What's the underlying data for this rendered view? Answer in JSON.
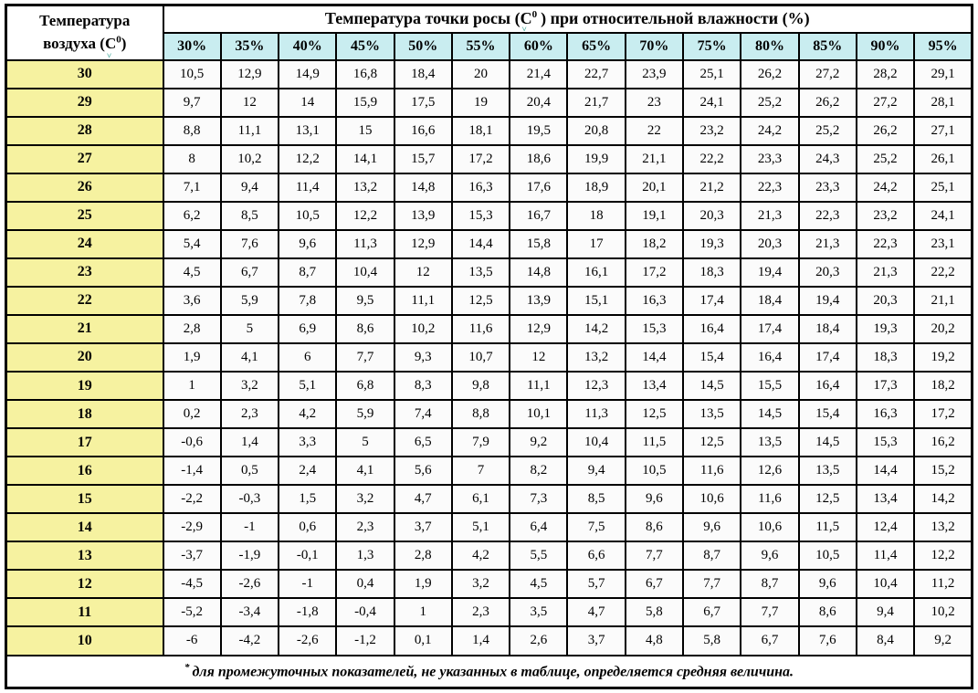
{
  "colors": {
    "header_cyan": "#c9edf0",
    "row_yellow": "#f6f2a0",
    "cell_bg": "#fbfbfb",
    "border_black": "#000000",
    "squiggle_teal": "#2f9e8f"
  },
  "icons": {
    "squiggle": "˅"
  },
  "header": {
    "corner_line1": "Температура",
    "corner_line2_pre": "воздуха (",
    "corner_c": "С",
    "corner_sup": "0",
    "corner_line2_post": ")",
    "title_pre": "Температура точки росы (",
    "title_c": "С",
    "title_sup": "0",
    "title_post": ") при относительной влажности (%)"
  },
  "footnote": {
    "marker": "*",
    "text": "для промежуточных показателей, не указанных в таблице, определяется средняя величина."
  },
  "chart_data": {
    "type": "table",
    "title": "Температура точки росы (С0) при относительной влажности (%)",
    "row_header_label": "Температура воздуха (С0)",
    "columns": [
      "30%",
      "35%",
      "40%",
      "45%",
      "50%",
      "55%",
      "60%",
      "65%",
      "70%",
      "75%",
      "80%",
      "85%",
      "90%",
      "95%"
    ],
    "rows": [
      {
        "temp": "30",
        "values": [
          "10,5",
          "12,9",
          "14,9",
          "16,8",
          "18,4",
          "20",
          "21,4",
          "22,7",
          "23,9",
          "25,1",
          "26,2",
          "27,2",
          "28,2",
          "29,1"
        ]
      },
      {
        "temp": "29",
        "values": [
          "9,7",
          "12",
          "14",
          "15,9",
          "17,5",
          "19",
          "20,4",
          "21,7",
          "23",
          "24,1",
          "25,2",
          "26,2",
          "27,2",
          "28,1"
        ]
      },
      {
        "temp": "28",
        "values": [
          "8,8",
          "11,1",
          "13,1",
          "15",
          "16,6",
          "18,1",
          "19,5",
          "20,8",
          "22",
          "23,2",
          "24,2",
          "25,2",
          "26,2",
          "27,1"
        ]
      },
      {
        "temp": "27",
        "values": [
          "8",
          "10,2",
          "12,2",
          "14,1",
          "15,7",
          "17,2",
          "18,6",
          "19,9",
          "21,1",
          "22,2",
          "23,3",
          "24,3",
          "25,2",
          "26,1"
        ]
      },
      {
        "temp": "26",
        "values": [
          "7,1",
          "9,4",
          "11,4",
          "13,2",
          "14,8",
          "16,3",
          "17,6",
          "18,9",
          "20,1",
          "21,2",
          "22,3",
          "23,3",
          "24,2",
          "25,1"
        ]
      },
      {
        "temp": "25",
        "values": [
          "6,2",
          "8,5",
          "10,5",
          "12,2",
          "13,9",
          "15,3",
          "16,7",
          "18",
          "19,1",
          "20,3",
          "21,3",
          "22,3",
          "23,2",
          "24,1"
        ]
      },
      {
        "temp": "24",
        "values": [
          "5,4",
          "7,6",
          "9,6",
          "11,3",
          "12,9",
          "14,4",
          "15,8",
          "17",
          "18,2",
          "19,3",
          "20,3",
          "21,3",
          "22,3",
          "23,1"
        ]
      },
      {
        "temp": "23",
        "values": [
          "4,5",
          "6,7",
          "8,7",
          "10,4",
          "12",
          "13,5",
          "14,8",
          "16,1",
          "17,2",
          "18,3",
          "19,4",
          "20,3",
          "21,3",
          "22,2"
        ]
      },
      {
        "temp": "22",
        "values": [
          "3,6",
          "5,9",
          "7,8",
          "9,5",
          "11,1",
          "12,5",
          "13,9",
          "15,1",
          "16,3",
          "17,4",
          "18,4",
          "19,4",
          "20,3",
          "21,1"
        ]
      },
      {
        "temp": "21",
        "values": [
          "2,8",
          "5",
          "6,9",
          "8,6",
          "10,2",
          "11,6",
          "12,9",
          "14,2",
          "15,3",
          "16,4",
          "17,4",
          "18,4",
          "19,3",
          "20,2"
        ]
      },
      {
        "temp": "20",
        "values": [
          "1,9",
          "4,1",
          "6",
          "7,7",
          "9,3",
          "10,7",
          "12",
          "13,2",
          "14,4",
          "15,4",
          "16,4",
          "17,4",
          "18,3",
          "19,2"
        ]
      },
      {
        "temp": "19",
        "values": [
          "1",
          "3,2",
          "5,1",
          "6,8",
          "8,3",
          "9,8",
          "11,1",
          "12,3",
          "13,4",
          "14,5",
          "15,5",
          "16,4",
          "17,3",
          "18,2"
        ]
      },
      {
        "temp": "18",
        "values": [
          "0,2",
          "2,3",
          "4,2",
          "5,9",
          "7,4",
          "8,8",
          "10,1",
          "11,3",
          "12,5",
          "13,5",
          "14,5",
          "15,4",
          "16,3",
          "17,2"
        ]
      },
      {
        "temp": "17",
        "values": [
          "-0,6",
          "1,4",
          "3,3",
          "5",
          "6,5",
          "7,9",
          "9,2",
          "10,4",
          "11,5",
          "12,5",
          "13,5",
          "14,5",
          "15,3",
          "16,2"
        ]
      },
      {
        "temp": "16",
        "values": [
          "-1,4",
          "0,5",
          "2,4",
          "4,1",
          "5,6",
          "7",
          "8,2",
          "9,4",
          "10,5",
          "11,6",
          "12,6",
          "13,5",
          "14,4",
          "15,2"
        ]
      },
      {
        "temp": "15",
        "values": [
          "-2,2",
          "-0,3",
          "1,5",
          "3,2",
          "4,7",
          "6,1",
          "7,3",
          "8,5",
          "9,6",
          "10,6",
          "11,6",
          "12,5",
          "13,4",
          "14,2"
        ]
      },
      {
        "temp": "14",
        "values": [
          "-2,9",
          "-1",
          "0,6",
          "2,3",
          "3,7",
          "5,1",
          "6,4",
          "7,5",
          "8,6",
          "9,6",
          "10,6",
          "11,5",
          "12,4",
          "13,2"
        ]
      },
      {
        "temp": "13",
        "values": [
          "-3,7",
          "-1,9",
          "-0,1",
          "1,3",
          "2,8",
          "4,2",
          "5,5",
          "6,6",
          "7,7",
          "8,7",
          "9,6",
          "10,5",
          "11,4",
          "12,2"
        ]
      },
      {
        "temp": "12",
        "values": [
          "-4,5",
          "-2,6",
          "-1",
          "0,4",
          "1,9",
          "3,2",
          "4,5",
          "5,7",
          "6,7",
          "7,7",
          "8,7",
          "9,6",
          "10,4",
          "11,2"
        ]
      },
      {
        "temp": "11",
        "values": [
          "-5,2",
          "-3,4",
          "-1,8",
          "-0,4",
          "1",
          "2,3",
          "3,5",
          "4,7",
          "5,8",
          "6,7",
          "7,7",
          "8,6",
          "9,4",
          "10,2"
        ]
      },
      {
        "temp": "10",
        "values": [
          "-6",
          "-4,2",
          "-2,6",
          "-1,2",
          "0,1",
          "1,4",
          "2,6",
          "3,7",
          "4,8",
          "5,8",
          "6,7",
          "7,6",
          "8,4",
          "9,2"
        ]
      }
    ]
  }
}
